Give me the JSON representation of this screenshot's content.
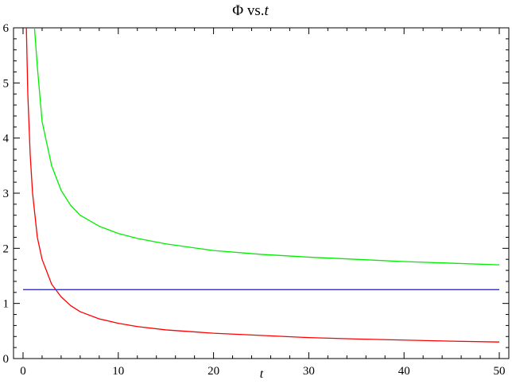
{
  "chart_data": {
    "type": "line",
    "title": {
      "prefix": "Φ vs.",
      "var": "t"
    },
    "xlabel": "t",
    "ylabel": "",
    "xlim": [
      -1,
      51
    ],
    "ylim": [
      0,
      6
    ],
    "x_ticks": [
      0,
      10,
      20,
      30,
      40,
      50
    ],
    "y_ticks": [
      0,
      1,
      2,
      3,
      4,
      5,
      6
    ],
    "grid": false,
    "series": [
      {
        "color": "#00ee00",
        "x": [
          1.2,
          1.5,
          2,
          3,
          4,
          5,
          6,
          8,
          10,
          12,
          15,
          20,
          25,
          30,
          35,
          40,
          45,
          50
        ],
        "y": [
          6,
          5.3,
          4.3,
          3.5,
          3.05,
          2.78,
          2.6,
          2.4,
          2.27,
          2.18,
          2.08,
          1.96,
          1.89,
          1.84,
          1.8,
          1.76,
          1.73,
          1.7
        ]
      },
      {
        "color": "#ff0000",
        "x": [
          0.35,
          0.5,
          0.75,
          1,
          1.5,
          2,
          3,
          4,
          5,
          6,
          8,
          10,
          12,
          15,
          20,
          25,
          30,
          35,
          40,
          45,
          50
        ],
        "y": [
          6,
          4.8,
          3.7,
          3,
          2.2,
          1.8,
          1.35,
          1.12,
          0.96,
          0.85,
          0.72,
          0.64,
          0.58,
          0.52,
          0.46,
          0.42,
          0.38,
          0.355,
          0.335,
          0.315,
          0.3
        ]
      },
      {
        "color": "#3333cc",
        "x": [
          0,
          50
        ],
        "y": [
          1.25,
          1.25
        ]
      }
    ]
  }
}
